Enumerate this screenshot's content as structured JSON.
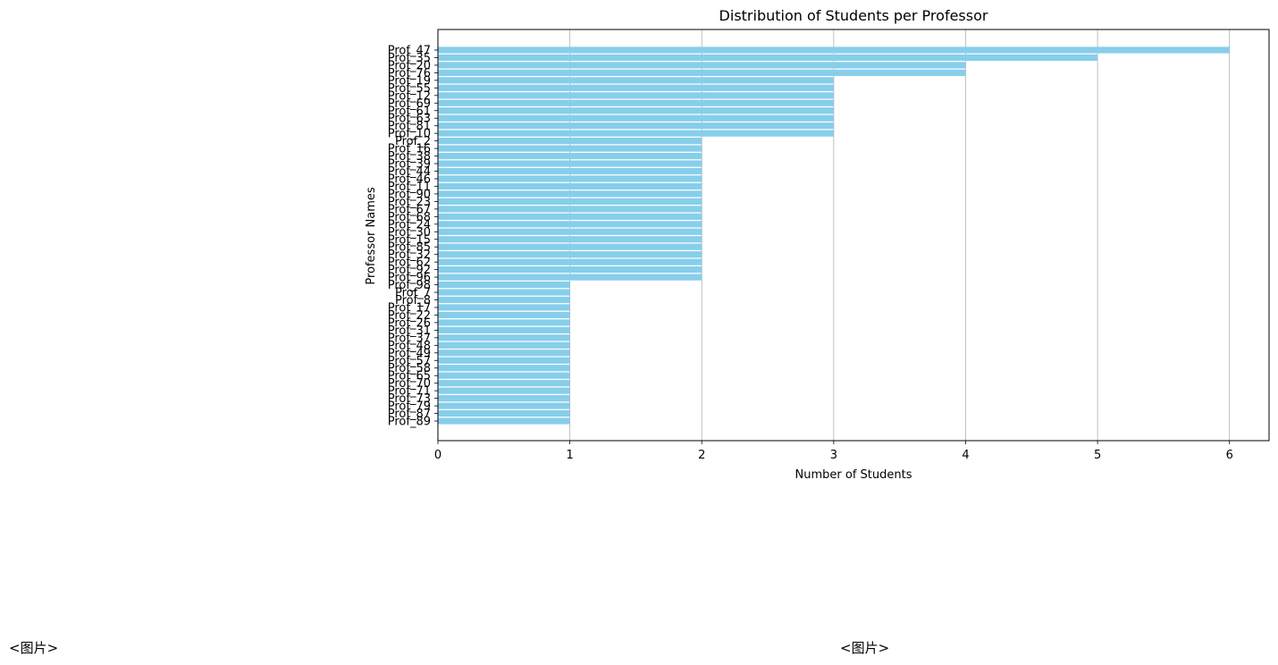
{
  "chart_data": {
    "type": "bar",
    "orientation": "horizontal",
    "title": "Distribution of Students per Professor",
    "xlabel": "Number of Students",
    "ylabel": "Professor Names",
    "xlim": [
      0,
      6.3
    ],
    "xticks": [
      0,
      1,
      2,
      3,
      4,
      5,
      6
    ],
    "grid": "x",
    "bar_color": "#87ceeb",
    "categories": [
      "Prof_47",
      "Prof_35",
      "Prof_20",
      "Prof_76",
      "Prof_19",
      "Prof_55",
      "Prof_12",
      "Prof_69",
      "Prof_61",
      "Prof_63",
      "Prof_81",
      "Prof_10",
      "Prof_2",
      "Prof_16",
      "Prof_38",
      "Prof_39",
      "Prof_44",
      "Prof_46",
      "Prof_11",
      "Prof_90",
      "Prof_23",
      "Prof_67",
      "Prof_68",
      "Prof_24",
      "Prof_30",
      "Prof_15",
      "Prof_85",
      "Prof_32",
      "Prof_62",
      "Prof_92",
      "Prof_96",
      "Prof_98",
      "Prof_7",
      "Prof_8",
      "Prof_17",
      "Prof_22",
      "Prof_26",
      "Prof_31",
      "Prof_37",
      "Prof_48",
      "Prof_49",
      "Prof_57",
      "Prof_58",
      "Prof_65",
      "Prof_70",
      "Prof_71",
      "Prof_73",
      "Prof_79",
      "Prof_87",
      "Prof_89"
    ],
    "values": [
      6,
      5,
      4,
      4,
      3,
      3,
      3,
      3,
      3,
      3,
      3,
      3,
      2,
      2,
      2,
      2,
      2,
      2,
      2,
      2,
      2,
      2,
      2,
      2,
      2,
      2,
      2,
      2,
      2,
      2,
      2,
      1,
      1,
      1,
      1,
      1,
      1,
      1,
      1,
      1,
      1,
      1,
      1,
      1,
      1,
      1,
      1,
      1,
      1,
      1
    ]
  },
  "footer": {
    "left": "<图片>",
    "right": "<图片>"
  }
}
